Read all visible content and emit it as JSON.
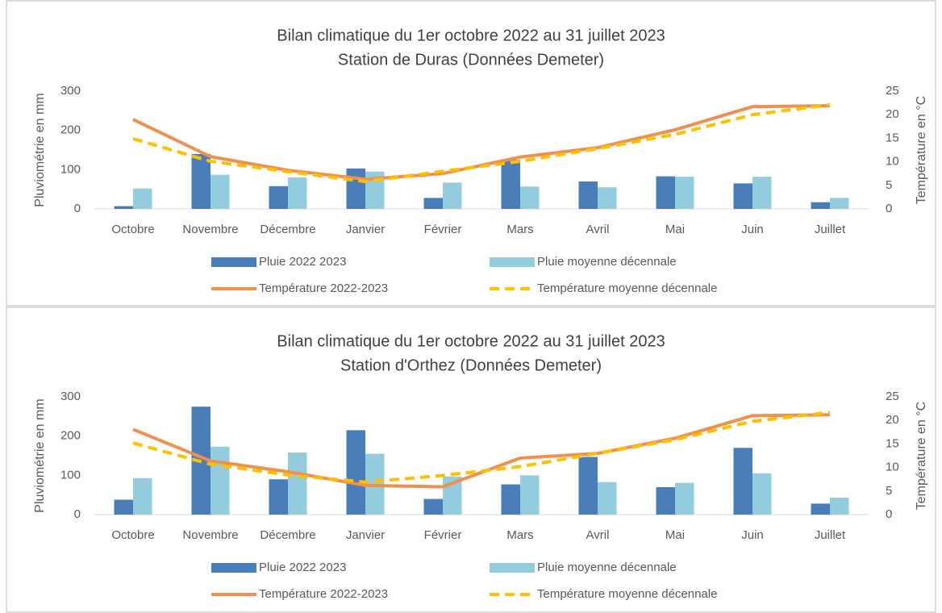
{
  "chart_data": [
    {
      "type": "bar-line",
      "title": "Bilan climatique du 1er octobre 2022 au 31 juillet 2023",
      "subtitle": "Station de Duras (Données Demeter)",
      "y_label": "Pluviométrie en mm",
      "y2_label": "Température en °C",
      "categories": [
        "Octobre",
        "Novembre",
        "Décembre",
        "Janvier",
        "Février",
        "Mars",
        "Avril",
        "Mai",
        "Juin",
        "Juillet"
      ],
      "ylim": [
        0,
        300
      ],
      "yticks": [
        0,
        100,
        200,
        300
      ],
      "y2lim": [
        0,
        25
      ],
      "y2ticks": [
        0,
        5,
        10,
        15,
        20,
        25
      ],
      "series": [
        {
          "name": "Pluie 2022 2023",
          "kind": "bar",
          "color": "#4a7ebb",
          "values": [
            7,
            140,
            58,
            103,
            28,
            125,
            70,
            83,
            65,
            17
          ]
        },
        {
          "name": "Pluie moyenne décennale",
          "kind": "bar",
          "color": "#93cddd",
          "values": [
            52,
            87,
            80,
            95,
            67,
            57,
            55,
            82,
            82,
            28
          ]
        },
        {
          "name": "Température 2022-2023",
          "kind": "line",
          "axis": "y2",
          "color": "#f0904e",
          "values": [
            19,
            11.1,
            8.2,
            6.3,
            7.5,
            11,
            13,
            16.8,
            21.7,
            21.9
          ]
        },
        {
          "name": "Température moyenne décennale",
          "kind": "dashed-line",
          "axis": "y2",
          "color": "#ffc000",
          "values": [
            14.9,
            10.1,
            7.9,
            5.8,
            8,
            10.1,
            12.8,
            15.8,
            20,
            22.1
          ]
        }
      ]
    },
    {
      "type": "bar-line",
      "title": "Bilan climatique du 1er octobre 2022 au 31 juillet 2023",
      "subtitle": "Station d'Orthez (Données Demeter)",
      "y_label": "Pluviométrie en mm",
      "y2_label": "Température en °C",
      "categories": [
        "Octobre",
        "Novembre",
        "Décembre",
        "Janvier",
        "Février",
        "Mars",
        "Avril",
        "Mai",
        "Juin",
        "Juillet"
      ],
      "ylim": [
        0,
        300
      ],
      "yticks": [
        0,
        100,
        200,
        300
      ],
      "y2lim": [
        0,
        25
      ],
      "y2ticks": [
        0,
        5,
        10,
        15,
        20,
        25
      ],
      "series": [
        {
          "name": "Pluie 2022 2023",
          "kind": "bar",
          "color": "#4a7ebb",
          "values": [
            38,
            275,
            90,
            215,
            40,
            77,
            147,
            70,
            170,
            28
          ]
        },
        {
          "name": "Pluie moyenne décennale",
          "kind": "bar",
          "color": "#93cddd",
          "values": [
            93,
            173,
            158,
            155,
            97,
            100,
            83,
            81,
            105,
            43
          ]
        },
        {
          "name": "Température 2022-2023",
          "kind": "line",
          "axis": "y2",
          "color": "#f0904e",
          "values": [
            18.1,
            11.4,
            9.1,
            6.2,
            5.9,
            12,
            13,
            16.2,
            21,
            21.2
          ]
        },
        {
          "name": "Température moyenne décennale",
          "kind": "dashed-line",
          "axis": "y2",
          "color": "#ffc000",
          "values": [
            15.2,
            10.7,
            8.4,
            6.9,
            8.3,
            10.2,
            13,
            15.9,
            19.8,
            21.7
          ]
        }
      ]
    }
  ]
}
